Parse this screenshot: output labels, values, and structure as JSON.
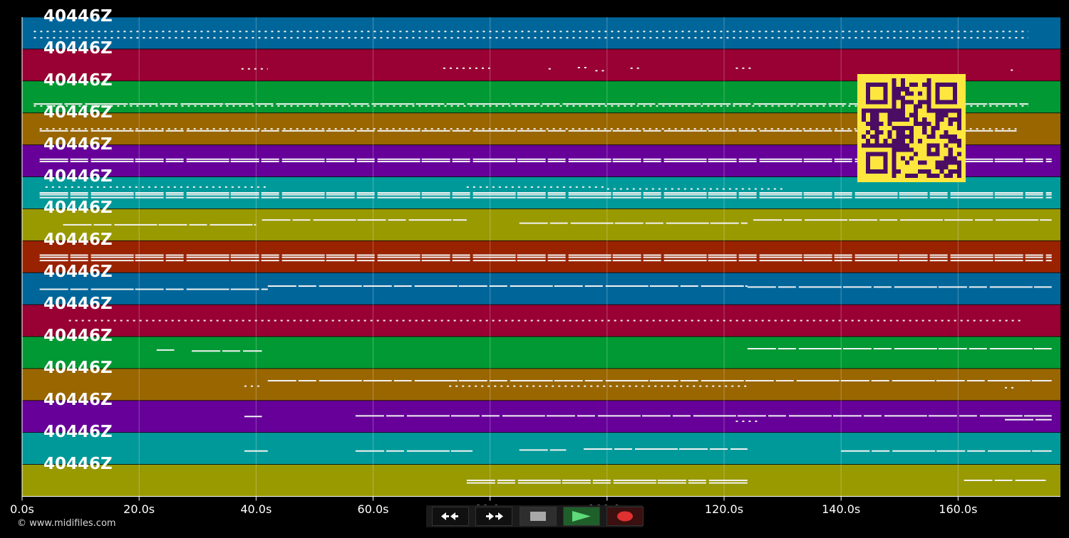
{
  "track_name": "40446Z",
  "tracks": [
    {
      "label": "40446Z",
      "color": "#00669a",
      "notes": [
        [
          2,
          172,
          0.45,
          "d"
        ],
        [
          2,
          172,
          0.65,
          "d"
        ]
      ]
    },
    {
      "label": "40446Z",
      "color": "#990033",
      "notes": [
        [
          37.5,
          42,
          0.62,
          "d"
        ],
        [
          72,
          80,
          0.6,
          "d"
        ],
        [
          90,
          91,
          0.62,
          "d"
        ],
        [
          95,
          97,
          0.58,
          "d"
        ],
        [
          98,
          100,
          0.68,
          "d"
        ],
        [
          104,
          106,
          0.6,
          "d"
        ],
        [
          122,
          125,
          0.6,
          "d"
        ],
        [
          169,
          170,
          0.66,
          "d"
        ]
      ]
    },
    {
      "label": "40446Z",
      "color": "#009933",
      "notes": [
        [
          2,
          172,
          0.72,
          "s"
        ],
        [
          2,
          172,
          0.78,
          "d"
        ]
      ]
    },
    {
      "label": "40446Z",
      "color": "#996600",
      "notes": [
        [
          3,
          170,
          0.5,
          "d"
        ],
        [
          3,
          170,
          0.56,
          "s"
        ]
      ]
    },
    {
      "label": "40446Z",
      "color": "#660099",
      "notes": [
        [
          3,
          176,
          0.45,
          "s"
        ],
        [
          3,
          176,
          0.52,
          "s"
        ]
      ]
    },
    {
      "label": "40446Z",
      "color": "#009999",
      "notes": [
        [
          3,
          176,
          0.5,
          "s"
        ],
        [
          3,
          176,
          0.56,
          "s"
        ],
        [
          3,
          176,
          0.65,
          "s"
        ],
        [
          4,
          42,
          0.32,
          "d"
        ],
        [
          76,
          100,
          0.32,
          "d"
        ],
        [
          100,
          130,
          0.38,
          "d"
        ]
      ]
    },
    {
      "label": "40446Z",
      "color": "#999900",
      "notes": [
        [
          7,
          40,
          0.5,
          "s"
        ],
        [
          41,
          76,
          0.35,
          "s"
        ],
        [
          85,
          124,
          0.45,
          "s"
        ],
        [
          125,
          176,
          0.35,
          "s"
        ]
      ]
    },
    {
      "label": "40446Z",
      "color": "#992200",
      "notes": [
        [
          3,
          176,
          0.45,
          "s"
        ],
        [
          3,
          176,
          0.52,
          "s"
        ],
        [
          3,
          176,
          0.62,
          "s"
        ]
      ]
    },
    {
      "label": "40446Z",
      "color": "#00669a",
      "notes": [
        [
          3,
          42,
          0.52,
          "s"
        ],
        [
          42,
          124,
          0.42,
          "s"
        ],
        [
          124,
          176,
          0.45,
          "s"
        ]
      ]
    },
    {
      "label": "40446Z",
      "color": "#990033",
      "notes": [
        [
          8,
          171,
          0.5,
          "d"
        ]
      ]
    },
    {
      "label": "40446Z",
      "color": "#009933",
      "notes": [
        [
          23,
          26,
          0.42,
          "s"
        ],
        [
          29,
          41,
          0.45,
          "s"
        ],
        [
          124,
          176,
          0.38,
          "s"
        ]
      ]
    },
    {
      "label": "40446Z",
      "color": "#996600",
      "notes": [
        [
          38,
          41,
          0.55,
          "d"
        ],
        [
          42,
          176,
          0.38,
          "s"
        ],
        [
          73,
          124,
          0.55,
          "d"
        ],
        [
          168,
          170,
          0.6,
          "d"
        ]
      ]
    },
    {
      "label": "40446Z",
      "color": "#660099",
      "notes": [
        [
          38,
          41,
          0.5,
          "s"
        ],
        [
          57,
          176,
          0.48,
          "s"
        ],
        [
          122,
          126,
          0.65,
          "d"
        ],
        [
          168,
          176,
          0.6,
          "s"
        ]
      ]
    },
    {
      "label": "40446Z",
      "color": "#009999",
      "notes": [
        [
          38,
          42,
          0.58,
          "s"
        ],
        [
          57,
          77,
          0.58,
          "s"
        ],
        [
          85,
          93,
          0.55,
          "s"
        ],
        [
          96,
          124,
          0.52,
          "s"
        ],
        [
          140,
          176,
          0.58,
          "s"
        ]
      ]
    },
    {
      "label": "40446Z",
      "color": "#999900",
      "notes": [
        [
          76,
          124,
          0.5,
          "s"
        ],
        [
          76,
          124,
          0.58,
          "s"
        ],
        [
          161,
          175,
          0.5,
          "s"
        ]
      ]
    }
  ],
  "x_axis": {
    "ticks": [
      "0.0s",
      "20.0s",
      "40.0s",
      "60.0s",
      "80.0s",
      "100.0s",
      "120.0s",
      "140.0s",
      "160.0s"
    ],
    "tick_values": [
      0,
      20,
      40,
      60,
      80,
      100,
      120,
      140,
      160
    ],
    "max_seconds": 177.5
  },
  "credit": "© www.midifiles.com",
  "transport": {
    "rewind": "rewind-icon",
    "forward": "fast-forward-icon",
    "stop": "stop-icon",
    "play": "play-icon",
    "record": "record-icon"
  },
  "colors": {
    "background": "#000000",
    "qr_fg": "#fde73f",
    "qr_bg": "#4a0d63"
  }
}
